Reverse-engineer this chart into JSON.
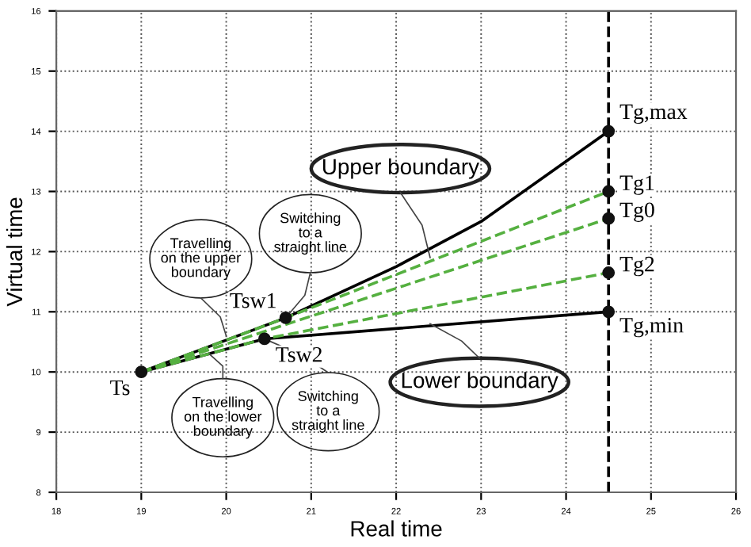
{
  "chart_data": {
    "type": "line",
    "xlabel": "Real time",
    "ylabel": "Virtual time",
    "xlim": [
      18,
      26
    ],
    "ylim": [
      8,
      16
    ],
    "xticks": [
      18,
      19,
      20,
      21,
      22,
      23,
      24,
      25,
      26
    ],
    "yticks": [
      8,
      9,
      10,
      11,
      12,
      13,
      14,
      15,
      16
    ],
    "grid": true,
    "line_style": "solid",
    "series": [
      {
        "color": "#000000",
        "x": [
          19,
          20.7,
          22,
          23,
          24.5
        ],
        "values": [
          10,
          10.9,
          11.75,
          12.5,
          14
        ]
      },
      {
        "color": "#000000",
        "x": [
          19,
          20.45,
          24.5
        ],
        "values": [
          10,
          10.55,
          11
        ]
      },
      {
        "color": "#55b040",
        "line_style": "dashed",
        "x": [
          19,
          20.7,
          24.5
        ],
        "values": [
          10,
          10.9,
          13
        ]
      },
      {
        "color": "#55b040",
        "line_style": "dashed",
        "x": [
          19,
          24.5
        ],
        "values": [
          10,
          12.55
        ]
      },
      {
        "color": "#55b040",
        "line_style": "dashed",
        "x": [
          19,
          20.45,
          24.5
        ],
        "values": [
          10,
          10.55,
          11.65
        ]
      },
      {
        "type": "scatter",
        "color": "#111111",
        "marker": "circle",
        "x": [
          19,
          20.7,
          20.45,
          24.5,
          24.5,
          24.5,
          24.5,
          24.5
        ],
        "values": [
          10,
          10.9,
          10.55,
          14,
          13,
          12.55,
          11.65,
          11
        ]
      }
    ],
    "ref_lines": [
      {
        "axis": "x",
        "value": 24.5,
        "color": "#000000",
        "line_style": "dashed"
      }
    ],
    "annotations": [
      {
        "text": "Ts",
        "x": 19,
        "y": 10
      },
      {
        "text": "Tsw1",
        "x": 20.7,
        "y": 10.9
      },
      {
        "text": "Tsw2",
        "x": 20.45,
        "y": 10.55
      },
      {
        "text": "Tg,max",
        "x": 24.5,
        "y": 14
      },
      {
        "text": "Tg1",
        "x": 24.5,
        "y": 13
      },
      {
        "text": "Tg0",
        "x": 24.5,
        "y": 12.55
      },
      {
        "text": "Tg2",
        "x": 24.5,
        "y": 11.65
      },
      {
        "text": "Tg,min",
        "x": 24.5,
        "y": 11
      },
      {
        "text": "Upper boundary",
        "x": 22.4,
        "y": 11.9
      },
      {
        "text": "Lower boundary",
        "x": 22.4,
        "y": 10.8
      },
      {
        "text": "Travelling\non the upper\nboundary",
        "x": 20.0,
        "y": 10.6
      },
      {
        "text": "Switching\nto a\nstraight line",
        "x": 20.7,
        "y": 10.9
      },
      {
        "text": "Travelling\non the lower\nboundary",
        "x": 19.8,
        "y": 10.3
      },
      {
        "text": "Switching\nto a\nstraight line",
        "x": 20.45,
        "y": 10.55
      }
    ]
  }
}
